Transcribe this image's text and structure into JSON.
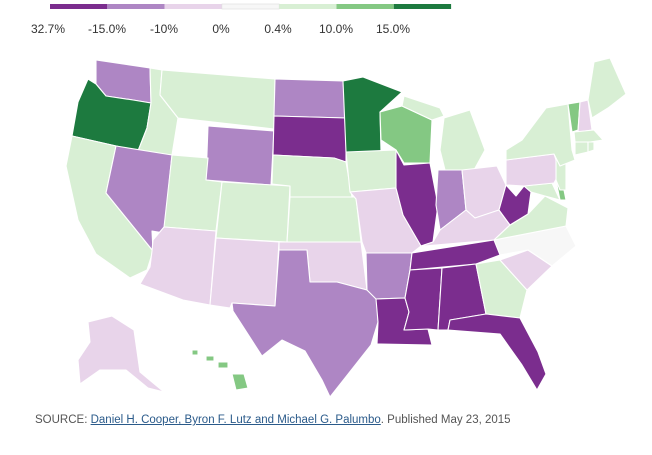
{
  "legend": {
    "bins": [
      {
        "color": "#7b2d8e",
        "label": "32.7%"
      },
      {
        "color": "#ae86c4",
        "label": "-15.0%"
      },
      {
        "color": "#e8d4ea",
        "label": "-10%"
      },
      {
        "color": "#f7f7f7",
        "label": "0%"
      },
      {
        "color": "#d8efd4",
        "label": "0.4%"
      },
      {
        "color": "#84c883",
        "label": "10.0%"
      },
      {
        "color": "#1d7a3f",
        "label": "15.0%"
      }
    ]
  },
  "states": {
    "WA": "#ae86c4",
    "OR": "#1d7a3f",
    "CA": "#d8efd4",
    "ID": "#d8efd4",
    "NV": "#ae86c4",
    "MT": "#d8efd4",
    "WY": "#ae86c4",
    "UT": "#d8efd4",
    "AZ": "#e8d4ea",
    "CO": "#d8efd4",
    "NM": "#e8d4ea",
    "ND": "#ae86c4",
    "SD": "#7b2d8e",
    "NE": "#d8efd4",
    "KS": "#d8efd4",
    "OK": "#e8d4ea",
    "TX": "#ae86c4",
    "MN": "#1d7a3f",
    "IA": "#d8efd4",
    "MO": "#e8d4ea",
    "AR": "#ae86c4",
    "LA": "#7b2d8e",
    "WI": "#84c883",
    "IL": "#7b2d8e",
    "MI": "#d8efd4",
    "IN": "#ae86c4",
    "OH": "#e8d4ea",
    "KY": "#e8d4ea",
    "TN": "#7b2d8e",
    "MS": "#7b2d8e",
    "AL": "#7b2d8e",
    "GA": "#d8efd4",
    "FL": "#7b2d8e",
    "SC": "#e8d4ea",
    "NC": "#f7f7f7",
    "VA": "#d8efd4",
    "WV": "#7b2d8e",
    "PA": "#e8d4ea",
    "NY": "#d8efd4",
    "VT": "#84c883",
    "NH": "#e8d4ea",
    "ME": "#d8efd4",
    "MA": "#d8efd4",
    "CT": "#d8efd4",
    "RI": "#d8efd4",
    "NJ": "#d8efd4",
    "DE": "#84c883",
    "MD": "#d8efd4",
    "AK": "#e8d4ea",
    "HI": "#84c883"
  },
  "footer": {
    "source_prefix": "SOURCE: ",
    "source_link": "Daniel H. Cooper, Byron F. Lutz and Michael G. Palumbo",
    "published": ". Published May 23, 2015"
  }
}
